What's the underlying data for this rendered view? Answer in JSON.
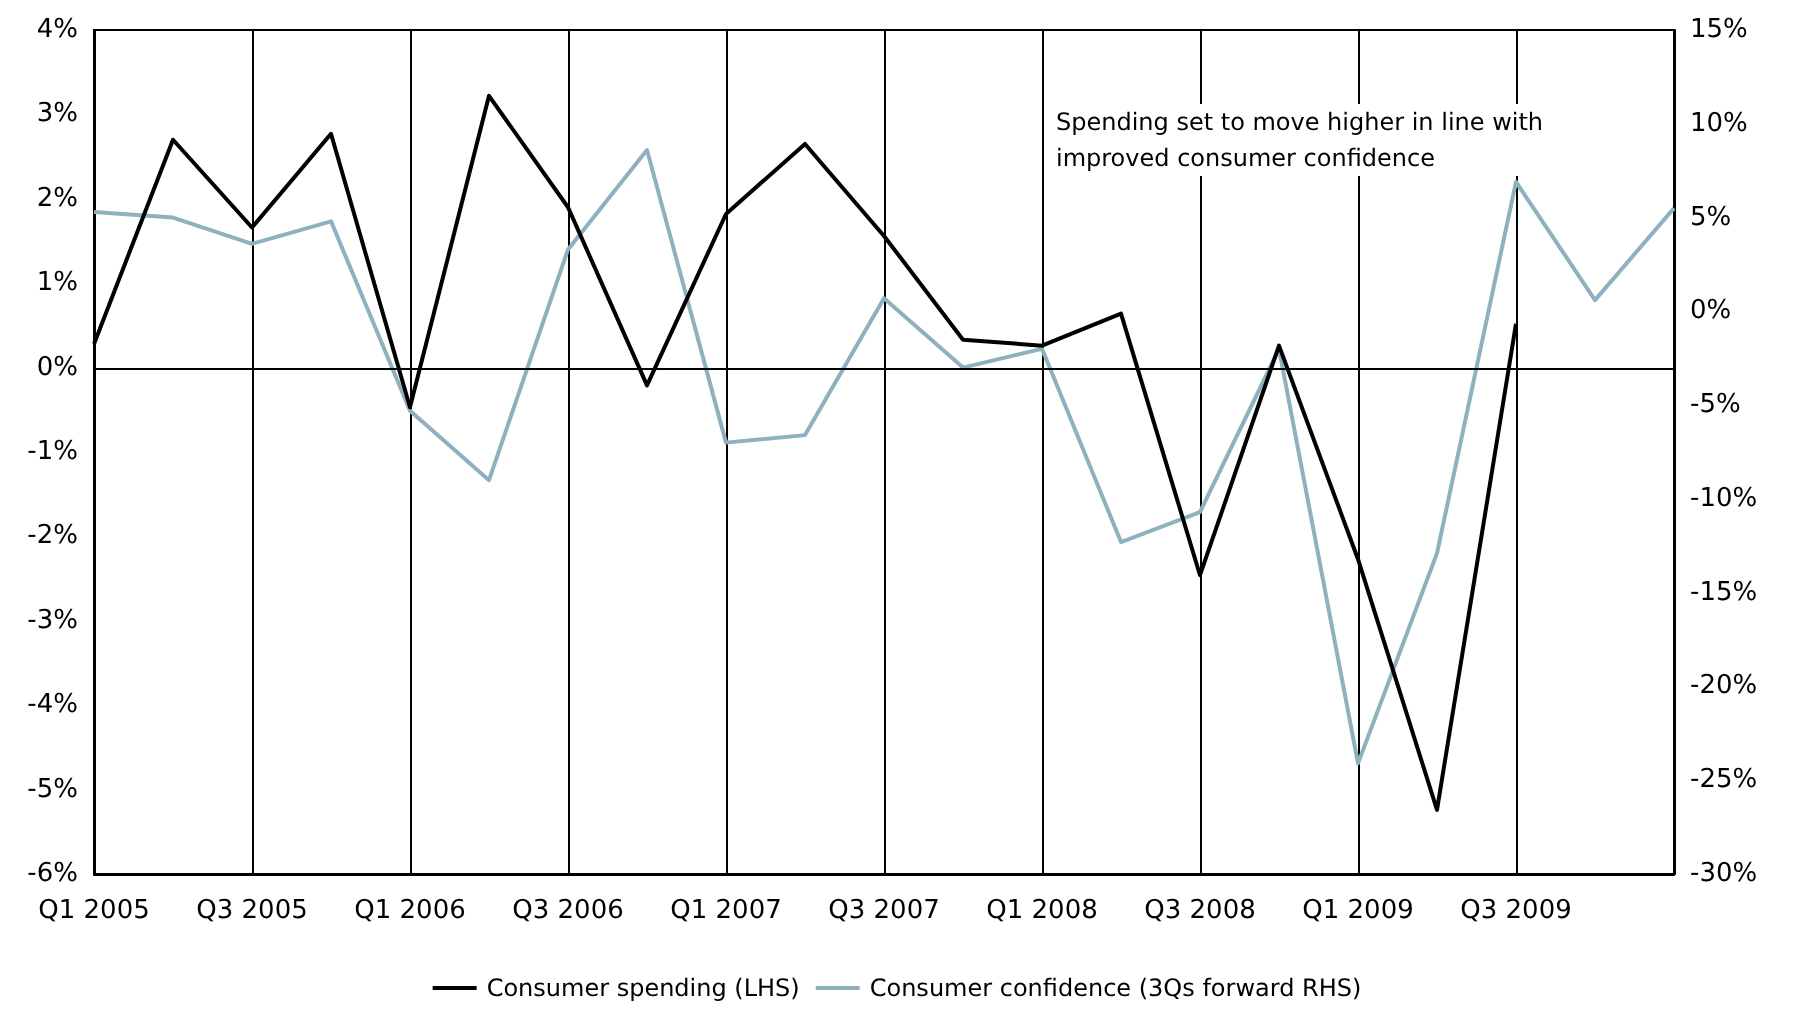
{
  "chart_data": {
    "type": "line",
    "categories": [
      "Q1 2005",
      null,
      "Q3 2005",
      null,
      "Q1 2006",
      null,
      "Q3 2006",
      null,
      "Q1 2007",
      null,
      "Q3 2007",
      null,
      "Q1 2008",
      null,
      "Q3 2008",
      null,
      "Q1 2009",
      null,
      "Q3 2009",
      null,
      null
    ],
    "series": [
      {
        "name": "Consumer spending (LHS)",
        "color": "#000000",
        "values": [
          0.28,
          2.7,
          1.66,
          2.77,
          -0.47,
          3.22,
          1.9,
          -0.21,
          1.82,
          2.65,
          1.56,
          0.33,
          0.26,
          0.64,
          -2.46,
          0.26,
          -2.27,
          -5.24,
          0.52,
          null,
          null
        ]
      },
      {
        "name": "Consumer confidence (3Qs forward RHS)",
        "color": "#8fb1bf",
        "axis": "y2",
        "values": [
          5.3,
          5.0,
          3.6,
          4.8,
          -5.3,
          -9.0,
          3.3,
          8.6,
          -7.0,
          -6.6,
          0.7,
          -3.0,
          -2.0,
          -12.3,
          -10.7,
          -2.0,
          -24.1,
          -12.9,
          6.9,
          0.6,
          5.5
        ]
      }
    ],
    "ylim": [
      -6,
      4
    ],
    "yticks": [
      {
        "value": -6,
        "label": "-6%"
      },
      {
        "value": -5,
        "label": "-5%"
      },
      {
        "value": -4,
        "label": "-4%"
      },
      {
        "value": -3,
        "label": "-3%"
      },
      {
        "value": -2,
        "label": "-2%"
      },
      {
        "value": -1,
        "label": "-1%"
      },
      {
        "value": 0,
        "label": "0%"
      },
      {
        "value": 1,
        "label": "1%"
      },
      {
        "value": 2,
        "label": "2%"
      },
      {
        "value": 3,
        "label": "3%"
      },
      {
        "value": 4,
        "label": "4%"
      }
    ],
    "y2lim": [
      -30,
      15
    ],
    "y2ticks": [
      {
        "value": -30,
        "label": "-30%"
      },
      {
        "value": -25,
        "label": "-25%"
      },
      {
        "value": -20,
        "label": "-20%"
      },
      {
        "value": -15,
        "label": "-15%"
      },
      {
        "value": -10,
        "label": "-10%"
      },
      {
        "value": -5,
        "label": "-5%"
      },
      {
        "value": 0,
        "label": "0%"
      },
      {
        "value": 5,
        "label": "5%"
      },
      {
        "value": 10,
        "label": "10%"
      },
      {
        "value": 15,
        "label": "15%"
      }
    ],
    "ref_lines": [
      {
        "axis": "y",
        "value": 0,
        "color": "#000000"
      }
    ],
    "annotations": [
      "Spending set to move higher in line with\nimproved consumer confidence"
    ],
    "grid": "x",
    "legend": "bottom",
    "marker": "none",
    "line_style": "solid"
  }
}
